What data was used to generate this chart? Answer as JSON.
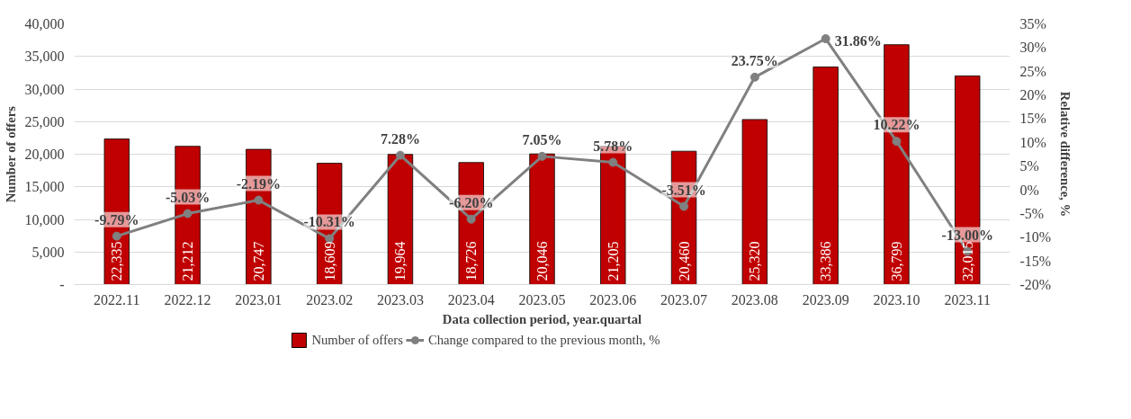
{
  "chart_data": {
    "type": "bar",
    "xlabel": "Data collection period, year.quartal",
    "ylabel": "Number of offers",
    "y2label": "Relative difference, %",
    "categories": [
      "2022.11",
      "2022.12",
      "2023.01",
      "2023.02",
      "2023.03",
      "2023.04",
      "2023.05",
      "2023.06",
      "2023.07",
      "2023.08",
      "2023.09",
      "2023.10",
      "2023.11"
    ],
    "series": [
      {
        "name": "Number of offers",
        "color": "#c00000",
        "values": [
          22335,
          21212,
          20747,
          18609,
          19964,
          18726,
          20046,
          21205,
          20460,
          25320,
          33386,
          36799,
          32015
        ],
        "value_labels": [
          "22,335",
          "21,212",
          "20,747",
          "18,609",
          "19,964",
          "18,726",
          "20,046",
          "21,205",
          "20,460",
          "25,320",
          "33,386",
          "36,799",
          "32,015"
        ]
      },
      {
        "name": "Change compared to the previous month, %",
        "type": "line",
        "axis": "y2",
        "color": "#808080",
        "marker": "circle",
        "values": [
          -9.79,
          -5.03,
          -2.19,
          -10.31,
          7.28,
          -6.2,
          7.05,
          5.78,
          -3.51,
          23.75,
          31.86,
          10.22,
          -13.0
        ],
        "value_labels": [
          "-9.79%",
          "-5.03%",
          "-2.19%",
          "-10.31%",
          "7.28%",
          "-6.20%",
          "7.05%",
          "5.78%",
          "-3.51%",
          "23.75%",
          "31.86%",
          "10.22%",
          "-13.00%"
        ]
      }
    ],
    "ylim": [
      0,
      40000
    ],
    "yticks": [
      {
        "value": 0,
        "label": "-"
      },
      {
        "value": 5000,
        "label": "5,000"
      },
      {
        "value": 10000,
        "label": "10,000"
      },
      {
        "value": 15000,
        "label": "15,000"
      },
      {
        "value": 20000,
        "label": "20,000"
      },
      {
        "value": 25000,
        "label": "25,000"
      },
      {
        "value": 30000,
        "label": "30,000"
      },
      {
        "value": 35000,
        "label": "35,000"
      },
      {
        "value": 40000,
        "label": "40,000"
      }
    ],
    "y2lim": [
      -20,
      35
    ],
    "y2ticks": [
      {
        "value": -20,
        "label": "-20%"
      },
      {
        "value": -15,
        "label": "-15%"
      },
      {
        "value": -10,
        "label": "-10%"
      },
      {
        "value": -5,
        "label": "-5%"
      },
      {
        "value": 0,
        "label": "0%"
      },
      {
        "value": 5,
        "label": "5%"
      },
      {
        "value": 10,
        "label": "10%"
      },
      {
        "value": 15,
        "label": "15%"
      },
      {
        "value": 20,
        "label": "20%"
      },
      {
        "value": 25,
        "label": "25%"
      },
      {
        "value": 30,
        "label": "30%"
      },
      {
        "value": 35,
        "label": "35%"
      }
    ],
    "grid": "y",
    "legend": "bottom"
  }
}
